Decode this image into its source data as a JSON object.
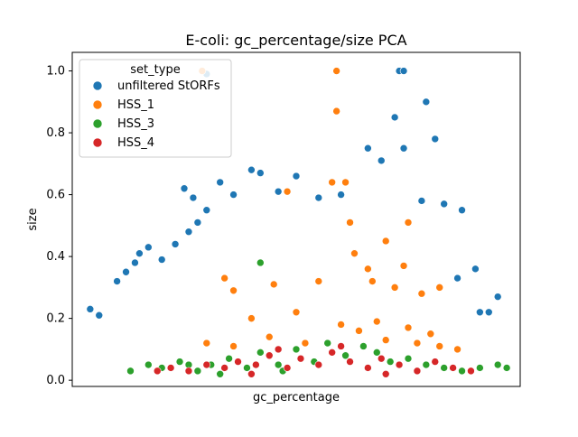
{
  "chart_data": {
    "type": "scatter",
    "title": "E-coli: gc_percentage/size PCA",
    "xlabel": "gc_percentage",
    "ylabel": "size",
    "ylim": [
      -0.02,
      1.06
    ],
    "xlim": [
      0,
      1
    ],
    "yticks": [
      "0.0",
      "0.2",
      "0.4",
      "0.6",
      "0.8",
      "1.0"
    ],
    "ytick_values": [
      0.0,
      0.2,
      0.4,
      0.6,
      0.8,
      1.0
    ],
    "grid": false,
    "legend": {
      "title": "set_type",
      "placement": "top-left"
    },
    "series": [
      {
        "name": "unfiltered StORFs",
        "color": "#1f77b4",
        "distribution": "dense cloud: size 0.20-0.45 across x 0.05-0.95, sparser up to 0.70 in center, outliers near 0.75-1.0",
        "sample_points": [
          [
            0.04,
            0.23
          ],
          [
            0.06,
            0.21
          ],
          [
            0.1,
            0.32
          ],
          [
            0.12,
            0.35
          ],
          [
            0.14,
            0.38
          ],
          [
            0.15,
            0.41
          ],
          [
            0.17,
            0.43
          ],
          [
            0.2,
            0.39
          ],
          [
            0.23,
            0.44
          ],
          [
            0.26,
            0.48
          ],
          [
            0.28,
            0.51
          ],
          [
            0.3,
            0.55
          ],
          [
            0.27,
            0.59
          ],
          [
            0.25,
            0.62
          ],
          [
            0.33,
            0.64
          ],
          [
            0.36,
            0.6
          ],
          [
            0.4,
            0.68
          ],
          [
            0.42,
            0.67
          ],
          [
            0.46,
            0.61
          ],
          [
            0.5,
            0.66
          ],
          [
            0.55,
            0.59
          ],
          [
            0.6,
            0.6
          ],
          [
            0.66,
            0.75
          ],
          [
            0.69,
            0.71
          ],
          [
            0.72,
            0.85
          ],
          [
            0.74,
            0.75
          ],
          [
            0.79,
            0.9
          ],
          [
            0.81,
            0.78
          ],
          [
            0.73,
            1.0
          ],
          [
            0.74,
            1.0
          ],
          [
            0.3,
            0.99
          ],
          [
            0.87,
            0.55
          ],
          [
            0.9,
            0.36
          ],
          [
            0.95,
            0.27
          ],
          [
            0.93,
            0.22
          ],
          [
            0.91,
            0.22
          ],
          [
            0.86,
            0.33
          ],
          [
            0.83,
            0.57
          ],
          [
            0.78,
            0.58
          ]
        ]
      },
      {
        "name": "HSS_1",
        "color": "#ff7f0e",
        "distribution": "band around size 0.10-0.35, extending up to 0.65 and isolated points near 0.87-1.0",
        "sample_points": [
          [
            0.29,
            1.0
          ],
          [
            0.59,
            1.0
          ],
          [
            0.59,
            0.87
          ],
          [
            0.61,
            0.64
          ],
          [
            0.58,
            0.64
          ],
          [
            0.48,
            0.61
          ],
          [
            0.62,
            0.51
          ],
          [
            0.75,
            0.51
          ],
          [
            0.7,
            0.45
          ],
          [
            0.34,
            0.33
          ],
          [
            0.36,
            0.29
          ],
          [
            0.45,
            0.31
          ],
          [
            0.55,
            0.32
          ],
          [
            0.63,
            0.41
          ],
          [
            0.67,
            0.32
          ],
          [
            0.72,
            0.3
          ],
          [
            0.78,
            0.28
          ],
          [
            0.82,
            0.3
          ],
          [
            0.4,
            0.2
          ],
          [
            0.5,
            0.22
          ],
          [
            0.6,
            0.18
          ],
          [
            0.68,
            0.19
          ],
          [
            0.75,
            0.17
          ],
          [
            0.8,
            0.15
          ],
          [
            0.3,
            0.12
          ],
          [
            0.36,
            0.11
          ],
          [
            0.44,
            0.14
          ],
          [
            0.52,
            0.12
          ],
          [
            0.64,
            0.16
          ],
          [
            0.7,
            0.13
          ],
          [
            0.77,
            0.12
          ],
          [
            0.82,
            0.11
          ],
          [
            0.86,
            0.1
          ],
          [
            0.74,
            0.37
          ],
          [
            0.66,
            0.36
          ]
        ]
      },
      {
        "name": "HSS_3",
        "color": "#2ca02c",
        "distribution": "band along size 0.02-0.12 across x 0.12-0.98",
        "sample_points": [
          [
            0.13,
            0.03
          ],
          [
            0.17,
            0.05
          ],
          [
            0.2,
            0.04
          ],
          [
            0.24,
            0.06
          ],
          [
            0.28,
            0.03
          ],
          [
            0.31,
            0.05
          ],
          [
            0.35,
            0.07
          ],
          [
            0.39,
            0.04
          ],
          [
            0.42,
            0.09
          ],
          [
            0.46,
            0.05
          ],
          [
            0.5,
            0.1
          ],
          [
            0.54,
            0.06
          ],
          [
            0.57,
            0.12
          ],
          [
            0.61,
            0.08
          ],
          [
            0.65,
            0.11
          ],
          [
            0.68,
            0.09
          ],
          [
            0.71,
            0.06
          ],
          [
            0.75,
            0.07
          ],
          [
            0.79,
            0.05
          ],
          [
            0.83,
            0.04
          ],
          [
            0.87,
            0.03
          ],
          [
            0.91,
            0.04
          ],
          [
            0.95,
            0.05
          ],
          [
            0.97,
            0.04
          ],
          [
            0.42,
            0.38
          ],
          [
            0.26,
            0.05
          ],
          [
            0.33,
            0.02
          ],
          [
            0.47,
            0.03
          ]
        ]
      },
      {
        "name": "HSS_4",
        "color": "#d62728",
        "distribution": "band along size 0.02-0.10 across x 0.18-0.90",
        "sample_points": [
          [
            0.19,
            0.03
          ],
          [
            0.22,
            0.04
          ],
          [
            0.26,
            0.03
          ],
          [
            0.3,
            0.05
          ],
          [
            0.34,
            0.04
          ],
          [
            0.37,
            0.06
          ],
          [
            0.41,
            0.05
          ],
          [
            0.44,
            0.08
          ],
          [
            0.48,
            0.04
          ],
          [
            0.51,
            0.07
          ],
          [
            0.55,
            0.05
          ],
          [
            0.58,
            0.09
          ],
          [
            0.62,
            0.06
          ],
          [
            0.66,
            0.04
          ],
          [
            0.69,
            0.07
          ],
          [
            0.73,
            0.05
          ],
          [
            0.77,
            0.03
          ],
          [
            0.81,
            0.06
          ],
          [
            0.85,
            0.04
          ],
          [
            0.89,
            0.03
          ],
          [
            0.46,
            0.1
          ],
          [
            0.6,
            0.11
          ],
          [
            0.4,
            0.02
          ],
          [
            0.7,
            0.02
          ]
        ]
      }
    ]
  }
}
